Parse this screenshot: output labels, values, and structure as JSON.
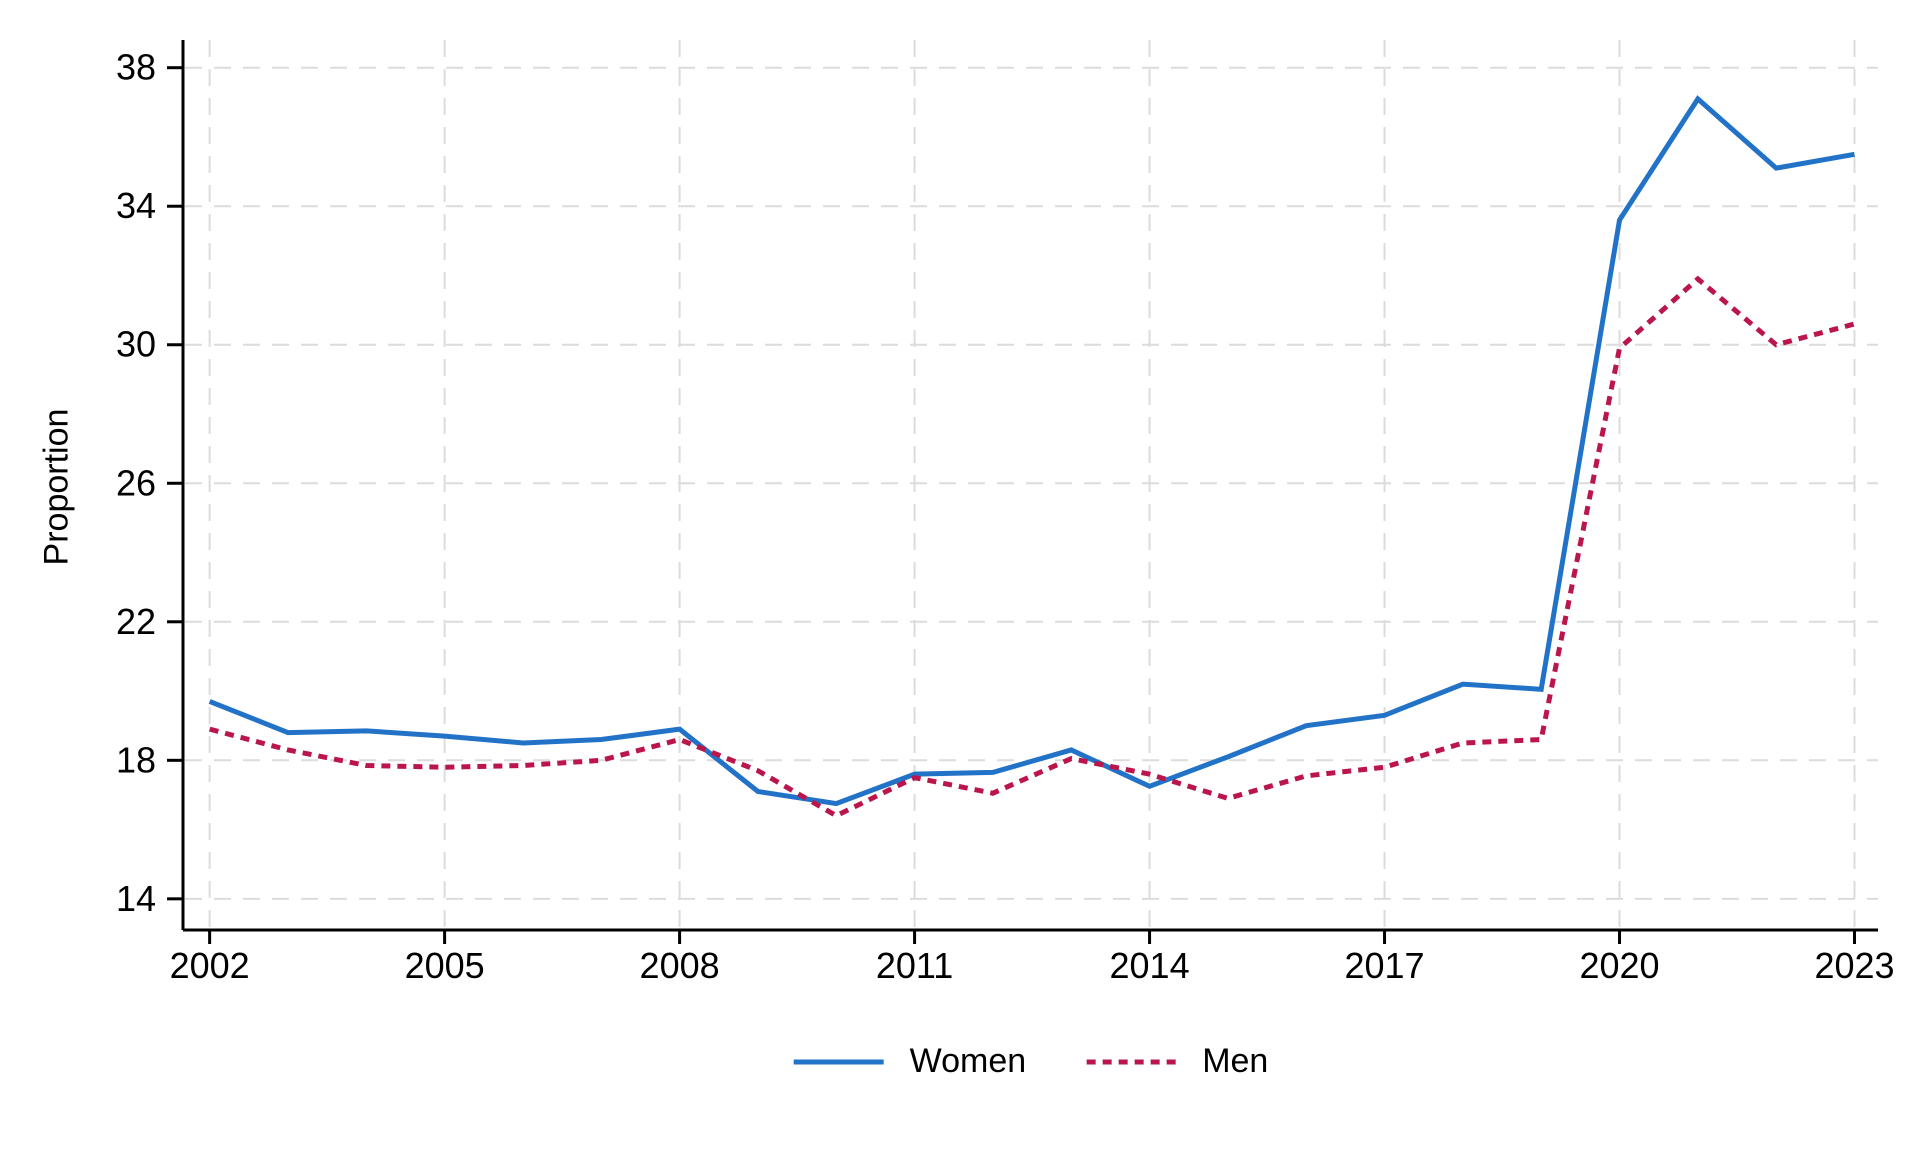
{
  "figure": {
    "background": "#ffffff",
    "axis_color": "#000000",
    "grid_color": "#dcdcdc",
    "text_color": "#000000"
  },
  "chart_data": {
    "type": "line",
    "title": "",
    "xlabel": "",
    "ylabel": "Proportion",
    "x": [
      2002,
      2003,
      2004,
      2005,
      2006,
      2007,
      2008,
      2009,
      2010,
      2011,
      2012,
      2013,
      2014,
      2015,
      2016,
      2017,
      2018,
      2019,
      2020,
      2021,
      2022,
      2023
    ],
    "series": [
      {
        "name": "Women",
        "color": "#2273c7",
        "line_style": "solid",
        "values": [
          19.7,
          18.8,
          18.85,
          18.7,
          18.5,
          18.6,
          18.9,
          17.1,
          16.75,
          17.6,
          17.65,
          18.3,
          17.25,
          18.1,
          19.0,
          19.3,
          20.2,
          20.05,
          33.6,
          37.1,
          35.1,
          35.5
        ]
      },
      {
        "name": "Men",
        "color": "#bb164c",
        "line_style": "dashed",
        "values": [
          18.9,
          18.3,
          17.85,
          17.8,
          17.85,
          18.0,
          18.6,
          17.7,
          16.4,
          17.5,
          17.05,
          18.05,
          17.6,
          16.9,
          17.55,
          17.8,
          18.5,
          18.6,
          29.9,
          31.9,
          30.0,
          30.6
        ]
      }
    ],
    "yticks": [
      14,
      18,
      22,
      26,
      30,
      34,
      38
    ],
    "xticks": [
      2002,
      2005,
      2008,
      2011,
      2014,
      2017,
      2020,
      2023
    ],
    "ylim": [
      13.1,
      38.8
    ],
    "xlim": [
      2001.66,
      2023.3
    ],
    "grid": true,
    "grid_style": "dashed",
    "legend_position": "bottom-center"
  }
}
